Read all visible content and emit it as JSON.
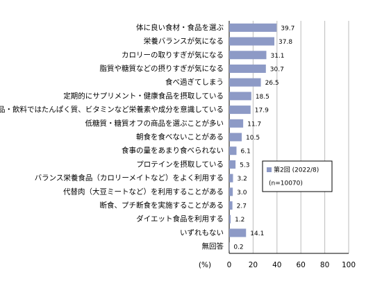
{
  "chart_data": {
    "type": "hbar",
    "categories": [
      "体に良い食材・食品を選ぶ",
      "栄養バランスが気になる",
      "カロリーの取りすぎが気になる",
      "脂質や糖質などの摂りすぎが気になる",
      "食べ過ぎてしまう",
      "定期的にサプリメント・健康食品を摂取している",
      "食品・飲料ではたんぱく質、ビタミンなど栄養素や成分を意識している",
      "低糖質・糖質オフの商品を選ぶことが多い",
      "朝食を食べないことがある",
      "食事の量をあまり食べられない",
      "プロテインを摂取している",
      "バランス栄養食品（カロリーメイトなど）をよく利用する",
      "代替肉（大豆ミートなど）を利用することがある",
      "断食、プチ断食を実施することがある",
      "ダイエット食品を利用する",
      "いずれもない",
      "無回答"
    ],
    "series": [
      {
        "name": "第2回 (2022/8)",
        "color": "#8d9ac6",
        "values": [
          39.7,
          37.8,
          31.1,
          30.7,
          26.5,
          18.5,
          17.9,
          11.7,
          10.5,
          6.1,
          5.3,
          3.2,
          3.0,
          2.7,
          1.2,
          14.1,
          0.2
        ],
        "value_labels": [
          "39.7",
          "37.8",
          "31.1",
          "30.7",
          "26.5",
          "18.5",
          "17.9",
          "11.7",
          "10.5",
          "6.1",
          "5.3",
          "3.2",
          "3.0",
          "2.7",
          "1.2",
          "14.1",
          "0.2"
        ]
      }
    ],
    "legend_note": "(n=10070)",
    "xlabel": "(%)",
    "xlim": [
      0,
      100
    ],
    "xticks": [
      0,
      20,
      40,
      60,
      80,
      100
    ],
    "grid": true
  }
}
